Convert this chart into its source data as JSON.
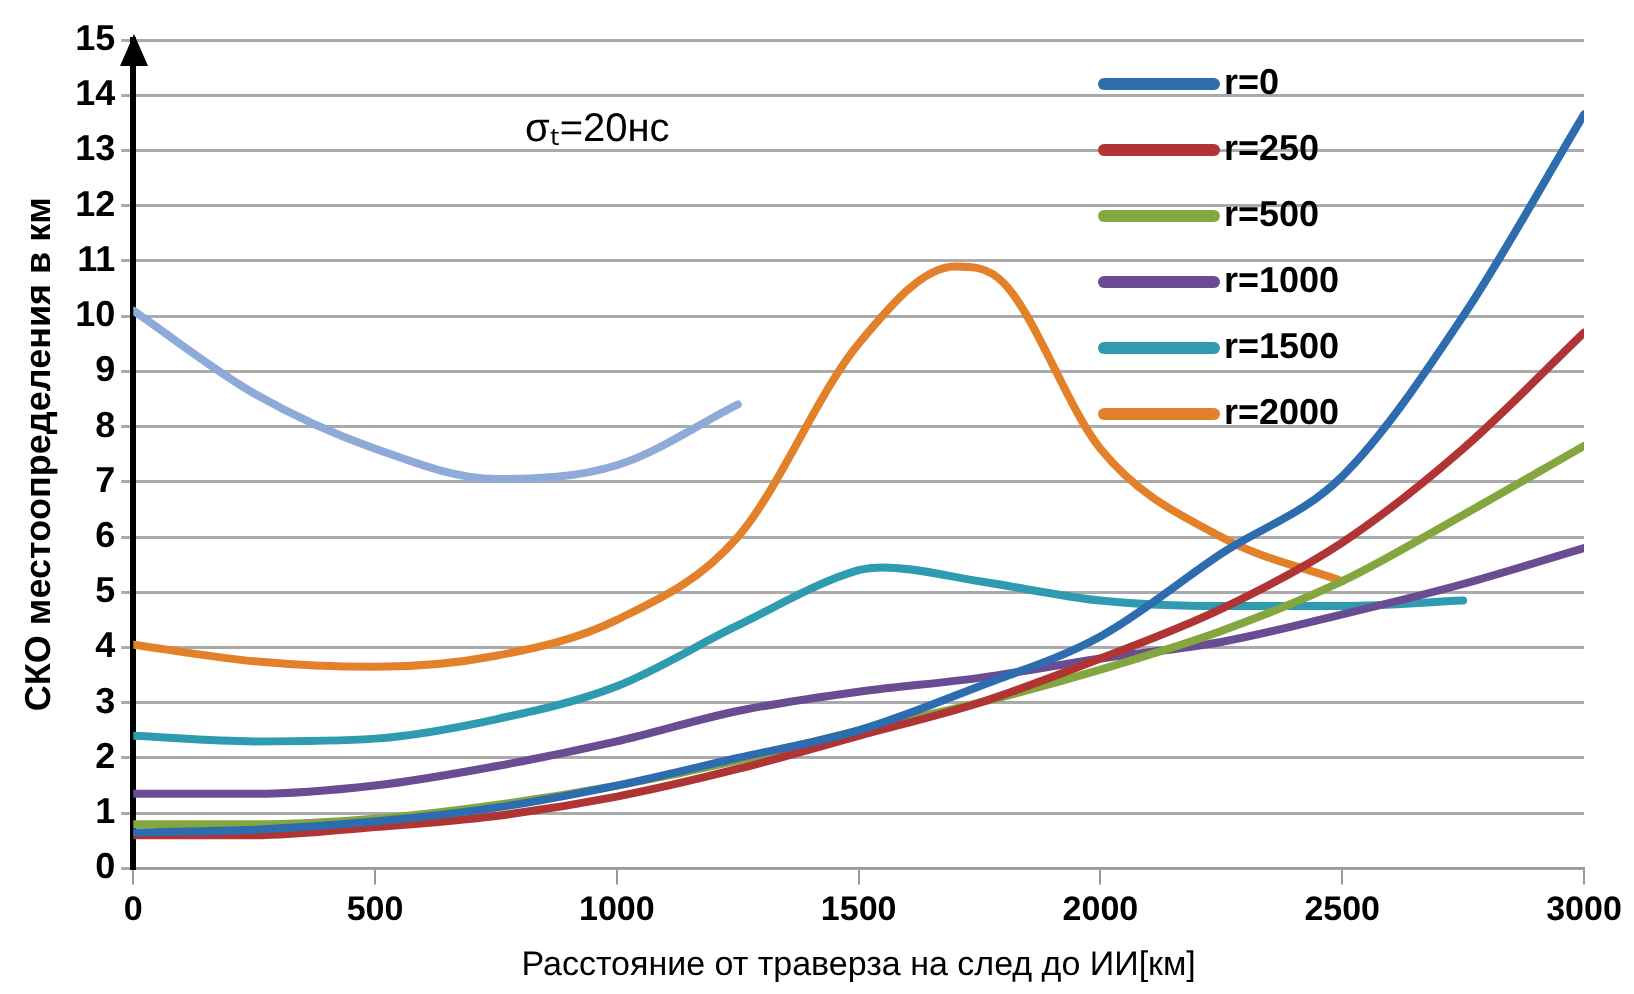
{
  "chart_data": {
    "type": "line",
    "xlabel": "Расстояние от траверза на след до ИИ[км]",
    "ylabel": "СКО местоопределения в км",
    "annotations": [
      "σₜ=20нс"
    ],
    "xlim": [
      0,
      3000
    ],
    "xticks": [
      0,
      500,
      1000,
      1500,
      2000,
      2500,
      3000
    ],
    "ylim": [
      0,
      15
    ],
    "yticks": [
      0,
      1,
      2,
      3,
      4,
      5,
      6,
      7,
      8,
      9,
      10,
      11,
      12,
      13,
      14,
      15
    ],
    "grid": "y",
    "legend": "top right",
    "marker": "none",
    "line_style": "solid",
    "series": [
      {
        "name": "r=0",
        "color": "#2e6cb0",
        "x": [
          0,
          250,
          500,
          750,
          1000,
          1250,
          1500,
          1750,
          2000,
          2250,
          2500,
          2750,
          3000
        ],
        "values": [
          0.65,
          0.7,
          0.85,
          1.1,
          1.5,
          2.0,
          2.5,
          3.3,
          4.2,
          5.7,
          7.1,
          10.0,
          13.65
        ]
      },
      {
        "name": "r=250",
        "color": "#b03434",
        "x": [
          0,
          250,
          500,
          750,
          1000,
          1250,
          1500,
          1750,
          2000,
          2250,
          2500,
          2750,
          3000
        ],
        "values": [
          0.6,
          0.6,
          0.75,
          0.95,
          1.3,
          1.8,
          2.4,
          3.0,
          3.8,
          4.7,
          5.9,
          7.6,
          9.7
        ]
      },
      {
        "name": "r=500",
        "color": "#84a63e",
        "x": [
          0,
          250,
          500,
          750,
          1000,
          1250,
          1500,
          1750,
          2000,
          2250,
          2500,
          2750,
          3000
        ],
        "values": [
          0.8,
          0.8,
          0.9,
          1.15,
          1.5,
          1.95,
          2.5,
          3.0,
          3.6,
          4.3,
          5.2,
          6.4,
          7.65
        ]
      },
      {
        "name": "r=1000",
        "color": "#6a4c93",
        "x": [
          0,
          250,
          500,
          750,
          1000,
          1250,
          1500,
          1750,
          2000,
          2250,
          2500,
          2750,
          3000
        ],
        "values": [
          1.35,
          1.35,
          1.5,
          1.85,
          2.3,
          2.85,
          3.2,
          3.45,
          3.8,
          4.1,
          4.6,
          5.15,
          5.8
        ]
      },
      {
        "name": "r=1500",
        "color": "#2e9bb0",
        "x": [
          0,
          250,
          500,
          750,
          1000,
          1250,
          1500,
          1550,
          1750,
          2000,
          2250,
          2500,
          2750
        ],
        "values": [
          2.4,
          2.3,
          2.35,
          2.7,
          3.3,
          4.4,
          5.4,
          5.45,
          5.2,
          4.85,
          4.75,
          4.75,
          4.85
        ]
      },
      {
        "name": "r=2000",
        "color": "#e3812a",
        "x": [
          0,
          250,
          500,
          750,
          1000,
          1250,
          1500,
          1700,
          1800,
          2000,
          2250,
          2500
        ],
        "values": [
          4.05,
          3.75,
          3.65,
          3.85,
          4.5,
          6.0,
          9.5,
          10.9,
          10.6,
          7.6,
          6.0,
          5.2
        ]
      },
      {
        "color": "#8eaad8",
        "x": [
          0,
          250,
          500,
          750,
          1000,
          1250
        ],
        "values": [
          10.1,
          8.6,
          7.6,
          7.05,
          7.3,
          8.4
        ]
      }
    ]
  }
}
